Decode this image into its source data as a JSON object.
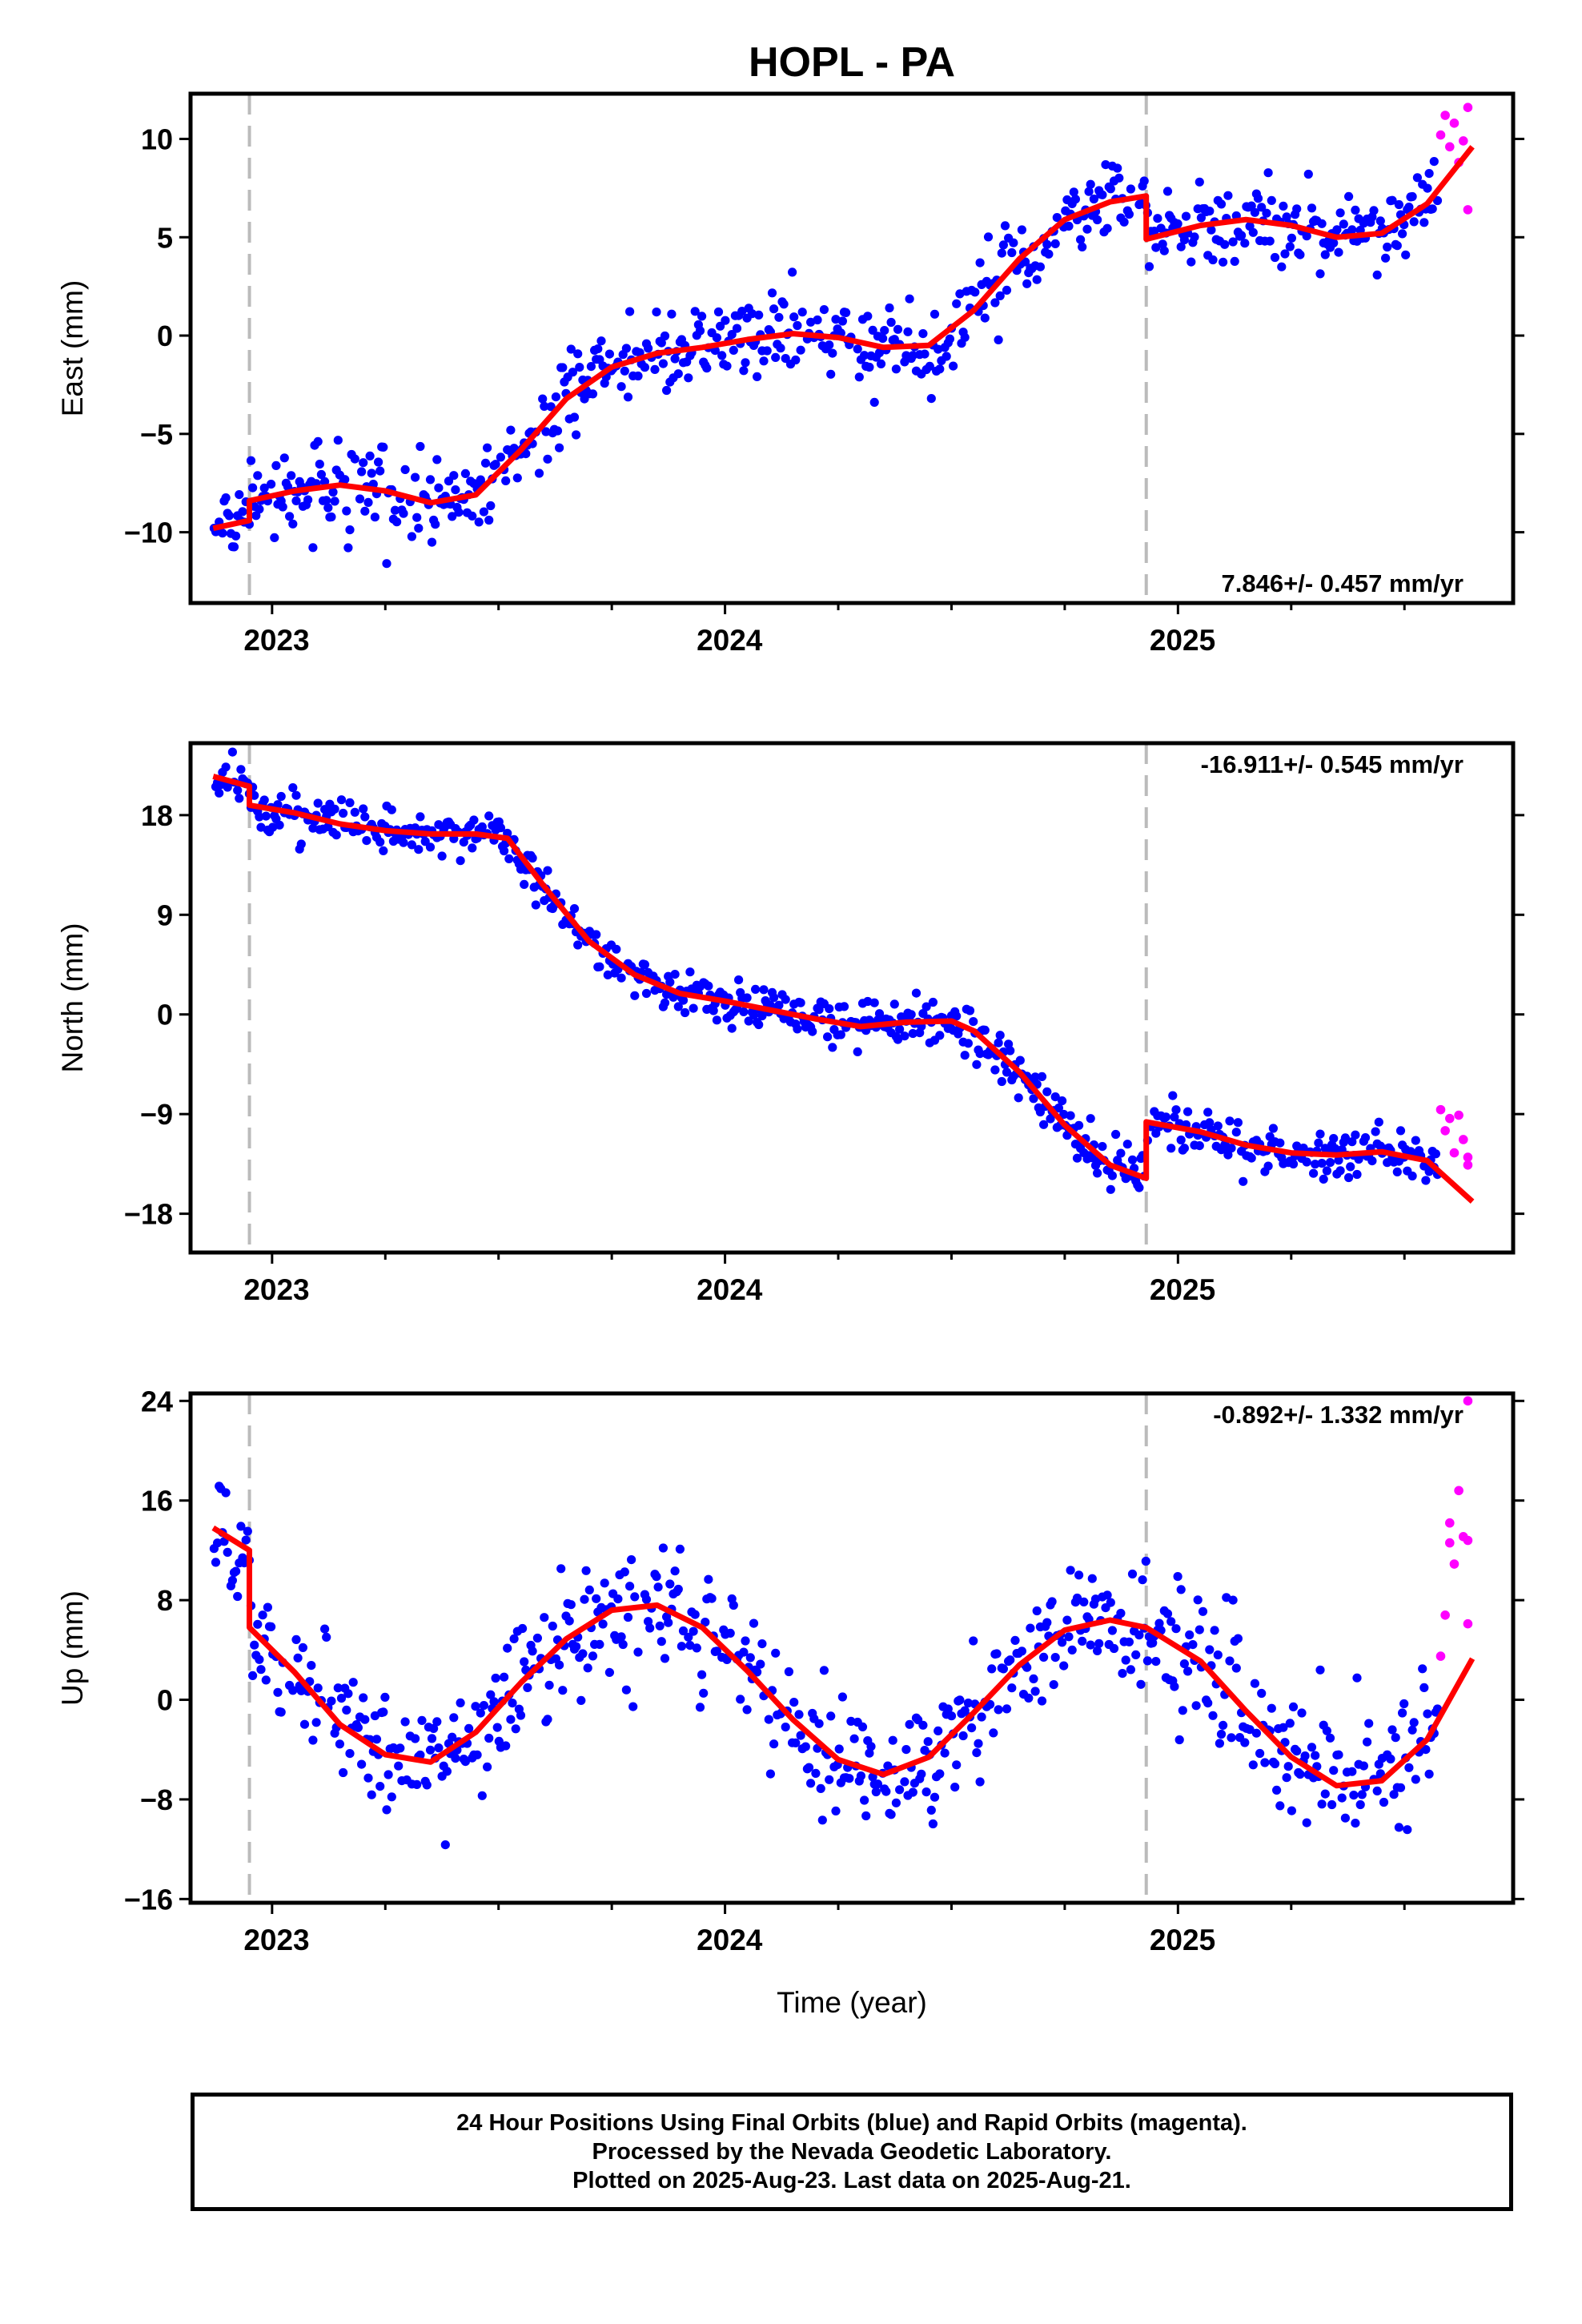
{
  "title": "HOPL - PA",
  "x_axis_label": "Time (year)",
  "x_ticks": [
    "2023",
    "2024",
    "2025"
  ],
  "colors": {
    "final": "#0000ff",
    "rapid": "#ff00ff",
    "model": "#ff0000",
    "offset_line": "#bbbbbb"
  },
  "offset_epochs": [
    2022.95,
    2024.93
  ],
  "footer": {
    "line1": "24 Hour Positions Using Final Orbits (blue) and Rapid Orbits (magenta).",
    "line2": "Processed by the Nevada Geodetic Laboratory.",
    "line3": "Plotted on 2025-Aug-23. Last data on 2025-Aug-21."
  },
  "chart_data": [
    {
      "type": "scatter",
      "component": "east",
      "ylabel": "East (mm)",
      "ylim": [
        -13.6,
        12.3
      ],
      "yticks": [
        -10,
        -5,
        0,
        5,
        10
      ],
      "ytick_labels": [
        "−10",
        "−5",
        "0",
        "5",
        "10"
      ],
      "xlim": [
        2022.82,
        2025.74
      ],
      "rate_label": "7.846+/- 0.457 mm/yr",
      "rate_position": "bottom-right",
      "model": {
        "name": "model fit",
        "x": [
          2022.87,
          2022.95,
          2022.95,
          2023.05,
          2023.15,
          2023.25,
          2023.35,
          2023.45,
          2023.55,
          2023.65,
          2023.75,
          2023.85,
          2023.95,
          2024.05,
          2024.15,
          2024.25,
          2024.35,
          2024.45,
          2024.55,
          2024.65,
          2024.75,
          2024.85,
          2024.93,
          2024.93,
          2025.05,
          2025.15,
          2025.25,
          2025.35,
          2025.45,
          2025.55,
          2025.65
        ],
        "y": [
          -9.8,
          -9.4,
          -8.4,
          -7.9,
          -7.6,
          -7.9,
          -8.5,
          -8.1,
          -5.8,
          -3.2,
          -1.6,
          -0.9,
          -0.6,
          -0.2,
          0.1,
          -0.1,
          -0.6,
          -0.5,
          1.3,
          3.9,
          5.9,
          6.8,
          7.1,
          4.9,
          5.6,
          5.9,
          5.6,
          5.0,
          5.2,
          6.7,
          9.6
        ]
      },
      "rapid": {
        "x": [
          2025.58,
          2025.59,
          2025.6,
          2025.61,
          2025.62,
          2025.63,
          2025.64,
          2025.64
        ],
        "y": [
          10.2,
          11.2,
          9.6,
          10.8,
          8.8,
          9.9,
          11.6,
          6.4
        ]
      }
    },
    {
      "type": "scatter",
      "component": "north",
      "ylabel": "North (mm)",
      "ylim": [
        -21.5,
        24.5
      ],
      "yticks": [
        -18,
        -9,
        0,
        9,
        18
      ],
      "ytick_labels": [
        "−18",
        "−9",
        "0",
        "9",
        "18"
      ],
      "xlim": [
        2022.82,
        2025.74
      ],
      "rate_label": "-16.911+/- 0.545 mm/yr",
      "rate_position": "top-right",
      "model": {
        "name": "model fit",
        "x": [
          2022.87,
          2022.95,
          2022.95,
          2023.05,
          2023.15,
          2023.25,
          2023.35,
          2023.45,
          2023.52,
          2023.6,
          2023.7,
          2023.8,
          2023.9,
          2024.0,
          2024.1,
          2024.2,
          2024.3,
          2024.4,
          2024.5,
          2024.55,
          2024.65,
          2024.75,
          2024.85,
          2024.93,
          2024.93,
          2025.05,
          2025.15,
          2025.25,
          2025.35,
          2025.45,
          2025.55,
          2025.65
        ],
        "y": [
          21.5,
          20.6,
          18.9,
          18.2,
          17.2,
          16.6,
          16.3,
          16.3,
          15.9,
          11.6,
          6.6,
          3.6,
          1.9,
          1.2,
          0.4,
          -0.4,
          -1.1,
          -0.7,
          -0.6,
          -1.5,
          -5.2,
          -10.0,
          -13.6,
          -14.8,
          -9.7,
          -10.6,
          -11.8,
          -12.5,
          -12.7,
          -12.4,
          -13.2,
          -16.9
        ]
      },
      "rapid": {
        "x": [
          2025.58,
          2025.59,
          2025.6,
          2025.61,
          2025.62,
          2025.63,
          2025.64,
          2025.64
        ],
        "y": [
          -8.6,
          -10.5,
          -9.4,
          -12.5,
          -9.1,
          -11.3,
          -13.6,
          -12.9
        ]
      }
    },
    {
      "type": "scatter",
      "component": "up",
      "ylabel": "Up (mm)",
      "ylim": [
        -16.3,
        24.6
      ],
      "yticks": [
        -16,
        -8,
        0,
        8,
        16,
        24
      ],
      "ytick_labels": [
        "−16",
        "−8",
        "0",
        "8",
        "16",
        "24"
      ],
      "xlim": [
        2022.82,
        2025.74
      ],
      "rate_label": "-0.892+/- 1.332 mm/yr",
      "rate_position": "top-right",
      "model": {
        "name": "model fit",
        "x": [
          2022.87,
          2022.95,
          2022.95,
          2023.05,
          2023.15,
          2023.25,
          2023.35,
          2023.45,
          2023.55,
          2023.65,
          2023.75,
          2023.85,
          2023.95,
          2024.05,
          2024.15,
          2024.25,
          2024.35,
          2024.45,
          2024.55,
          2024.65,
          2024.75,
          2024.85,
          2024.93,
          2025.05,
          2025.15,
          2025.25,
          2025.35,
          2025.45,
          2025.55,
          2025.65
        ],
        "y": [
          13.8,
          12.0,
          5.8,
          2.2,
          -2.0,
          -4.4,
          -5.0,
          -2.6,
          1.4,
          4.9,
          7.2,
          7.6,
          5.8,
          2.3,
          -1.6,
          -4.8,
          -6.0,
          -4.6,
          -1.0,
          2.8,
          5.6,
          6.4,
          5.8,
          3.1,
          -0.9,
          -4.6,
          -6.9,
          -6.5,
          -3.2,
          3.3
        ]
      },
      "rapid": {
        "x": [
          2025.58,
          2025.59,
          2025.6,
          2025.6,
          2025.61,
          2025.62,
          2025.63,
          2025.64,
          2025.64,
          2025.64
        ],
        "y": [
          3.5,
          6.8,
          12.6,
          14.2,
          10.9,
          16.8,
          13.1,
          24.0,
          6.1,
          12.8
        ]
      }
    }
  ]
}
